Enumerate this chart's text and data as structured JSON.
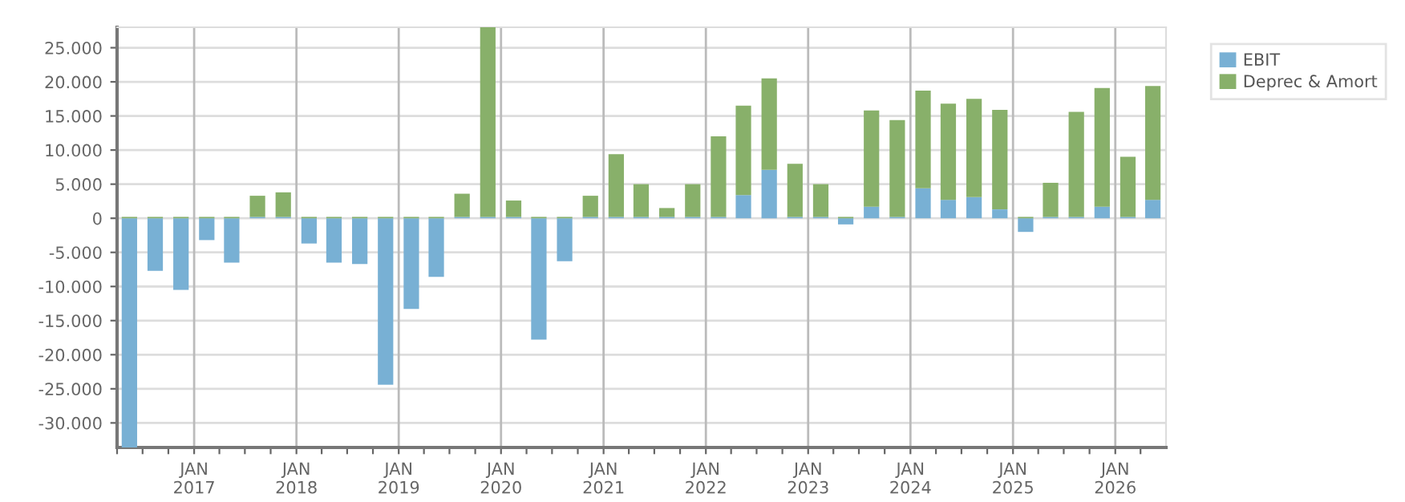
{
  "chart_data": {
    "type": "bar",
    "stacked": true,
    "x": [
      "2016-05-15",
      "2016-08-15",
      "2016-11-15",
      "2017-02-15",
      "2017-05-15",
      "2017-08-15",
      "2017-11-15",
      "2018-02-15",
      "2018-05-15",
      "2018-08-15",
      "2018-11-15",
      "2019-02-15",
      "2019-05-15",
      "2019-08-15",
      "2019-11-15",
      "2020-02-15",
      "2020-05-15",
      "2020-08-15",
      "2020-11-15",
      "2021-02-15",
      "2021-05-15",
      "2021-08-15",
      "2021-11-15",
      "2022-02-15",
      "2022-05-15",
      "2022-08-15",
      "2022-11-15",
      "2023-02-15",
      "2023-05-15",
      "2023-08-15",
      "2023-11-15",
      "2024-02-15",
      "2024-05-15",
      "2024-08-15",
      "2024-11-15",
      "2025-02-15",
      "2025-05-15",
      "2025-08-15",
      "2025-11-15",
      "2026-02-15",
      "2026-05-15"
    ],
    "series": [
      {
        "name": "EBIT",
        "color": "#78b0d4",
        "values": [
          -33600,
          -7700,
          -10500,
          -3200,
          -6500,
          200,
          200,
          -3700,
          -6500,
          -6700,
          -24400,
          -13300,
          -8600,
          200,
          200,
          200,
          -17800,
          -6300,
          200,
          200,
          200,
          200,
          200,
          200,
          3400,
          7100,
          200,
          200,
          -900,
          1700,
          200,
          4400,
          2700,
          3100,
          1300,
          -2000,
          200,
          200,
          1700,
          200,
          2700
        ]
      },
      {
        "name": "Deprec & Amort",
        "color": "#88b06a",
        "values": [
          200,
          200,
          200,
          200,
          200,
          3100,
          3600,
          200,
          200,
          200,
          200,
          200,
          200,
          3400,
          27800,
          2400,
          200,
          200,
          3100,
          9200,
          4800,
          1300,
          4800,
          11800,
          13100,
          13400,
          7800,
          4800,
          200,
          14100,
          14200,
          14300,
          14100,
          14400,
          14600,
          200,
          5000,
          15400,
          17400,
          8800,
          16700
        ]
      }
    ],
    "xlim": [
      "2016-04-01",
      "2026-07-01"
    ],
    "xticks": [
      {
        "value": "2016-04-01",
        "label": null
      },
      {
        "value": "2016-07-01",
        "label": null
      },
      {
        "value": "2016-10-01",
        "label": null
      },
      {
        "value": "2017-01-01",
        "label": "JAN\n2017"
      },
      {
        "value": "2017-04-01",
        "label": null
      },
      {
        "value": "2017-07-01",
        "label": null
      },
      {
        "value": "2017-10-01",
        "label": null
      },
      {
        "value": "2018-01-01",
        "label": "JAN\n2018"
      },
      {
        "value": "2018-04-01",
        "label": null
      },
      {
        "value": "2018-07-01",
        "label": null
      },
      {
        "value": "2018-10-01",
        "label": null
      },
      {
        "value": "2019-01-01",
        "label": "JAN\n2019"
      },
      {
        "value": "2019-04-01",
        "label": null
      },
      {
        "value": "2019-07-01",
        "label": null
      },
      {
        "value": "2019-10-01",
        "label": null
      },
      {
        "value": "2020-01-01",
        "label": "JAN\n2020"
      },
      {
        "value": "2020-04-01",
        "label": null
      },
      {
        "value": "2020-07-01",
        "label": null
      },
      {
        "value": "2020-10-01",
        "label": null
      },
      {
        "value": "2021-01-01",
        "label": "JAN\n2021"
      },
      {
        "value": "2021-04-01",
        "label": null
      },
      {
        "value": "2021-07-01",
        "label": null
      },
      {
        "value": "2021-10-01",
        "label": null
      },
      {
        "value": "2022-01-01",
        "label": "JAN\n2022"
      },
      {
        "value": "2022-04-01",
        "label": null
      },
      {
        "value": "2022-07-01",
        "label": null
      },
      {
        "value": "2022-10-01",
        "label": null
      },
      {
        "value": "2023-01-01",
        "label": "JAN\n2023"
      },
      {
        "value": "2023-04-01",
        "label": null
      },
      {
        "value": "2023-07-01",
        "label": null
      },
      {
        "value": "2023-10-01",
        "label": null
      },
      {
        "value": "2024-01-01",
        "label": "JAN\n2024"
      },
      {
        "value": "2024-04-01",
        "label": null
      },
      {
        "value": "2024-07-01",
        "label": null
      },
      {
        "value": "2024-10-01",
        "label": null
      },
      {
        "value": "2025-01-01",
        "label": "JAN\n2025"
      },
      {
        "value": "2025-04-01",
        "label": null
      },
      {
        "value": "2025-07-01",
        "label": null
      },
      {
        "value": "2025-10-01",
        "label": null
      },
      {
        "value": "2026-01-01",
        "label": "JAN\n2026"
      },
      {
        "value": "2026-04-01",
        "label": null
      }
    ],
    "ylim": [
      -33600,
      28000
    ],
    "yticks": [
      {
        "value": -30000,
        "label": "-30.000"
      },
      {
        "value": -25000,
        "label": "-25.000"
      },
      {
        "value": -20000,
        "label": "-20.000"
      },
      {
        "value": -15000,
        "label": "-15.000"
      },
      {
        "value": -10000,
        "label": "-10.000"
      },
      {
        "value": -5000,
        "label": "-5.000"
      },
      0,
      {
        "value": 5000,
        "label": "5.000"
      },
      {
        "value": 10000,
        "label": "10.000"
      },
      {
        "value": 15000,
        "label": "15.000"
      },
      {
        "value": 20000,
        "label": "20.000"
      },
      {
        "value": 25000,
        "label": "25.000"
      }
    ],
    "grid": true,
    "legend": "top right"
  }
}
